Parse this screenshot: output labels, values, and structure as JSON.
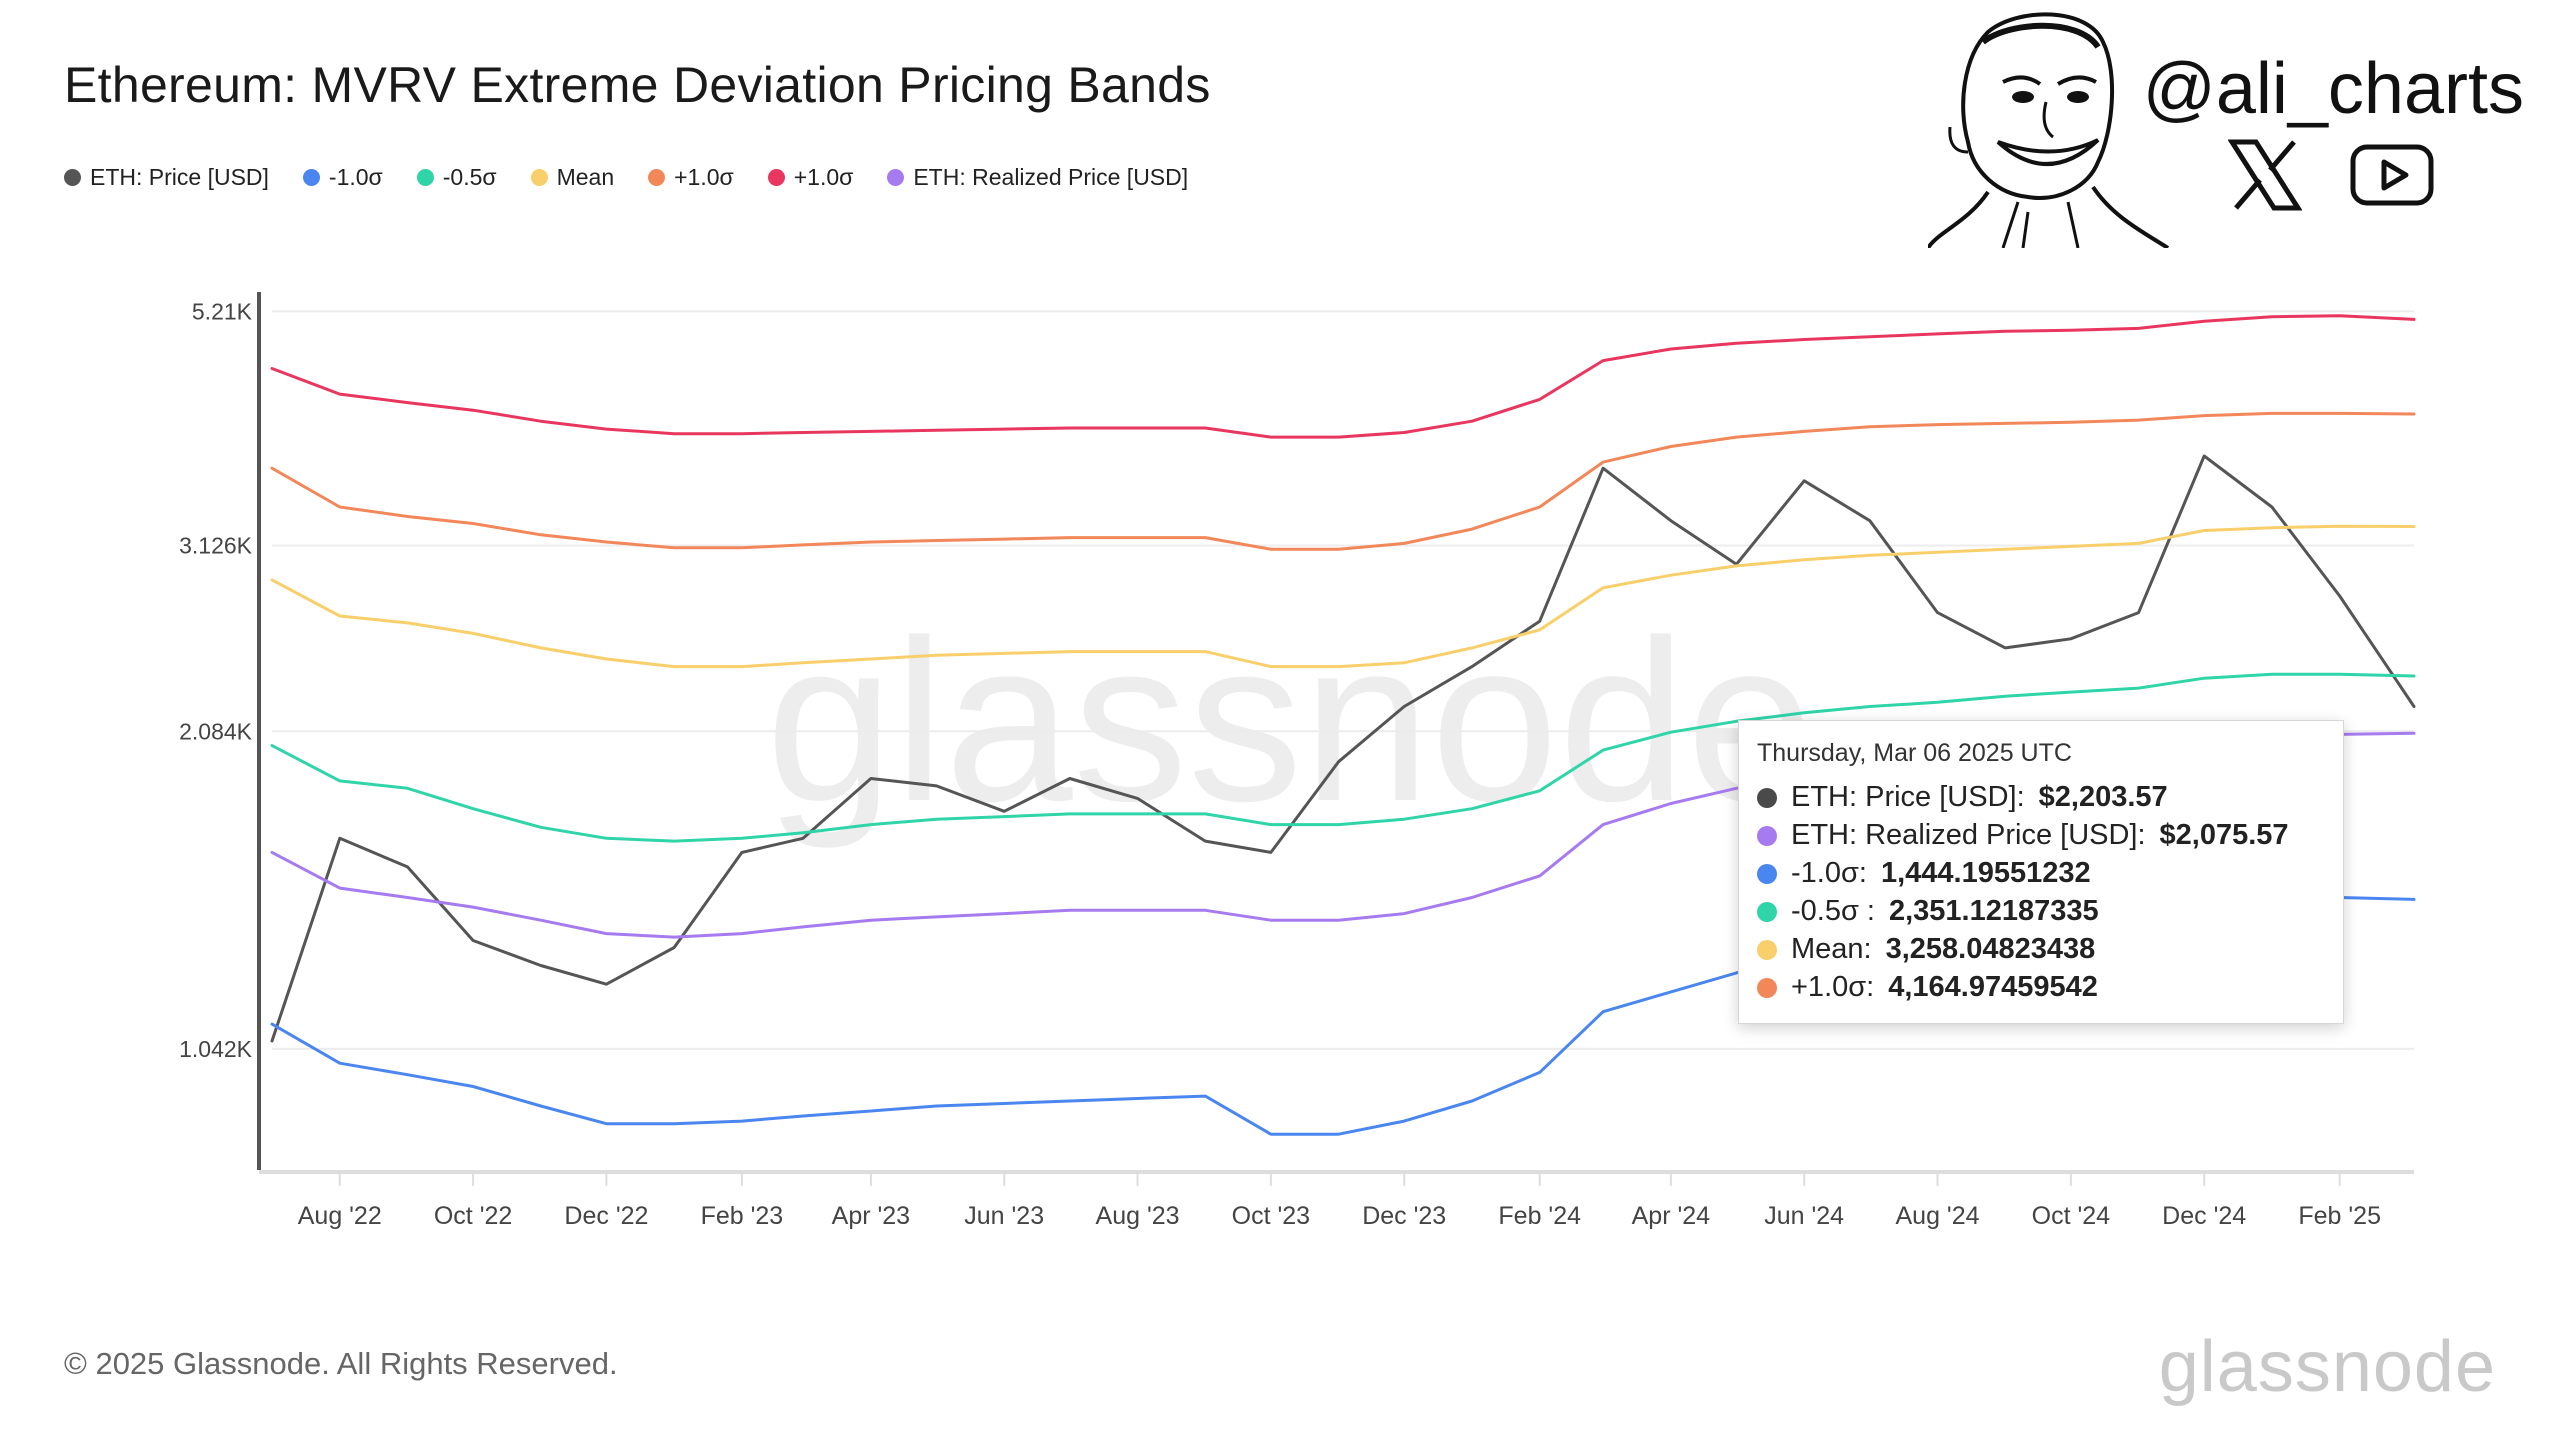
{
  "header": {
    "title": "Ethereum: MVRV Extreme Deviation Pricing Bands"
  },
  "brand": {
    "handle": "@ali_charts",
    "x_icon": "x-logo-icon",
    "youtube_icon": "youtube-play-icon",
    "face_icon": "cartoon-face-icon"
  },
  "footer": {
    "copyright": "© 2025 Glassnode. All Rights Reserved.",
    "logo": "glassnode"
  },
  "watermark": "glassnode",
  "tooltip": {
    "date": "Thursday, Mar 06 2025 UTC",
    "rows": [
      {
        "label": "ETH: Price [USD]:",
        "value": "$2,203.57",
        "color": "#4a4a4a"
      },
      {
        "label": "ETH: Realized Price [USD]:",
        "value": "$2,075.57",
        "color": "#a77bf0"
      },
      {
        "label": "-1.0σ:",
        "value": "1,444.19551232",
        "color": "#4a86f0"
      },
      {
        "label": "-0.5σ :",
        "value": "2,351.12187335",
        "color": "#2fd4a8"
      },
      {
        "label": "Mean:",
        "value": "3,258.04823438",
        "color": "#f8cf6a"
      },
      {
        "label": "+1.0σ:",
        "value": "4,164.97459542",
        "color": "#f2875a"
      }
    ]
  },
  "chart_data": {
    "type": "line",
    "title": "Ethereum: MVRV Extreme Deviation Pricing Bands",
    "x_range": [
      "2022-07-01",
      "2025-03-07"
    ],
    "x_ticks": [
      "Aug '22",
      "Oct '22",
      "Dec '22",
      "Feb '23",
      "Apr '23",
      "Jun '23",
      "Aug '23",
      "Oct '23",
      "Dec '23",
      "Feb '24",
      "Apr '24",
      "Jun '24",
      "Aug '24",
      "Oct '24",
      "Dec '24",
      "Feb '25"
    ],
    "y_ticks": [
      "5.21K",
      "3.126K",
      "2.084K",
      "1.042K"
    ],
    "y_tick_values": [
      5210,
      3126,
      2084,
      1042
    ],
    "y_scale": "log",
    "ylim": [
      800,
      5400
    ],
    "grid": "horizontal",
    "legend_position": "top-left",
    "dates": [
      "2022-07-01",
      "2022-08-01",
      "2022-09-01",
      "2022-10-01",
      "2022-11-01",
      "2022-12-01",
      "2023-01-01",
      "2023-02-01",
      "2023-03-01",
      "2023-04-01",
      "2023-05-01",
      "2023-06-01",
      "2023-07-01",
      "2023-08-01",
      "2023-09-01",
      "2023-10-01",
      "2023-11-01",
      "2023-12-01",
      "2024-01-01",
      "2024-02-01",
      "2024-03-01",
      "2024-04-01",
      "2024-05-01",
      "2024-06-01",
      "2024-07-01",
      "2024-08-01",
      "2024-09-01",
      "2024-10-01",
      "2024-11-01",
      "2024-12-01",
      "2025-01-01",
      "2025-02-01",
      "2025-03-07"
    ],
    "series": [
      {
        "name": "ETH: Price [USD]",
        "color": "#555555",
        "width": 3,
        "values": [
          1060,
          1650,
          1550,
          1320,
          1250,
          1200,
          1300,
          1600,
          1650,
          1880,
          1850,
          1750,
          1880,
          1800,
          1640,
          1600,
          1950,
          2200,
          2400,
          2650,
          3700,
          3300,
          3000,
          3600,
          3300,
          2700,
          2500,
          2550,
          2700,
          3800,
          3400,
          2800,
          2200
        ]
      },
      {
        "name": "-1.0σ",
        "color": "#4a86f0",
        "width": 3,
        "values": [
          1100,
          1010,
          985,
          960,
          920,
          885,
          885,
          890,
          900,
          910,
          920,
          925,
          930,
          935,
          940,
          865,
          865,
          890,
          930,
          990,
          1130,
          1180,
          1230,
          1270,
          1300,
          1330,
          1360,
          1390,
          1410,
          1460,
          1460,
          1450,
          1444
        ]
      },
      {
        "name": "-0.5σ",
        "color": "#2fd4a8",
        "width": 3,
        "values": [
          2020,
          1870,
          1840,
          1760,
          1690,
          1650,
          1640,
          1650,
          1670,
          1700,
          1720,
          1730,
          1740,
          1740,
          1740,
          1700,
          1700,
          1720,
          1760,
          1830,
          2000,
          2080,
          2130,
          2170,
          2200,
          2220,
          2250,
          2270,
          2290,
          2340,
          2360,
          2360,
          2351
        ]
      },
      {
        "name": "Mean",
        "color": "#f8cf6a",
        "width": 3,
        "values": [
          2900,
          2680,
          2640,
          2580,
          2500,
          2440,
          2400,
          2400,
          2420,
          2440,
          2460,
          2470,
          2480,
          2480,
          2480,
          2400,
          2400,
          2420,
          2500,
          2600,
          2850,
          2930,
          2990,
          3030,
          3060,
          3080,
          3100,
          3120,
          3140,
          3230,
          3250,
          3260,
          3258
        ]
      },
      {
        "name": "+1.0σ",
        "color": "#f2875a",
        "width": 3,
        "values": [
          3700,
          3400,
          3330,
          3280,
          3200,
          3150,
          3110,
          3110,
          3130,
          3150,
          3160,
          3170,
          3180,
          3180,
          3180,
          3100,
          3100,
          3140,
          3240,
          3400,
          3750,
          3880,
          3960,
          4010,
          4050,
          4070,
          4080,
          4090,
          4110,
          4150,
          4170,
          4170,
          4165
        ]
      },
      {
        "name": "+1.0σ",
        "color": "#e8365f",
        "width": 3,
        "values": [
          4600,
          4350,
          4270,
          4200,
          4100,
          4030,
          3990,
          3990,
          4000,
          4010,
          4020,
          4030,
          4040,
          4040,
          4040,
          3960,
          3960,
          4000,
          4100,
          4300,
          4680,
          4800,
          4860,
          4900,
          4930,
          4960,
          4990,
          5000,
          5020,
          5100,
          5150,
          5160,
          5120
        ]
      },
      {
        "name": "ETH: Realized Price [USD]",
        "color": "#a77bf0",
        "width": 3,
        "values": [
          1600,
          1480,
          1450,
          1420,
          1380,
          1340,
          1330,
          1340,
          1360,
          1380,
          1390,
          1400,
          1410,
          1410,
          1410,
          1380,
          1380,
          1400,
          1450,
          1520,
          1700,
          1780,
          1840,
          1880,
          1910,
          1930,
          1950,
          1970,
          1990,
          2040,
          2060,
          2070,
          2075
        ]
      }
    ]
  }
}
